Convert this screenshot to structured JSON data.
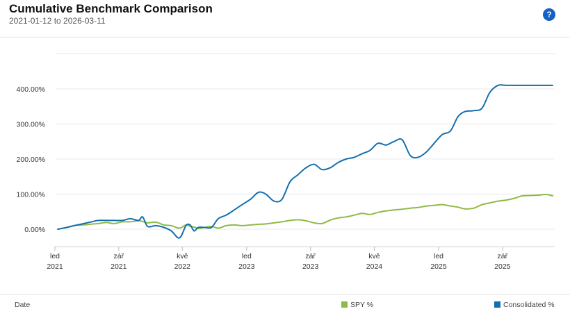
{
  "header": {
    "title": "Cumulative Benchmark Comparison",
    "subtitle": "2021-01-12 to 2026-03-11",
    "help_symbol": "?"
  },
  "footer": {
    "date_label": "Date"
  },
  "colors": {
    "spy": "#8dbb46",
    "consolidated": "#146fae",
    "grid": "#e8e8e8",
    "axis_text": "#333333",
    "help_bg": "#1560c4"
  },
  "chart_data": {
    "type": "line",
    "ylim": [
      -50,
      500
    ],
    "y_ticks": [
      0,
      100,
      200,
      300,
      400
    ],
    "y_tick_labels": [
      "0.00%",
      "100.00%",
      "200.00%",
      "300.00%",
      "400.00%"
    ],
    "xlim": [
      "2021-01-12",
      "2026-03-11"
    ],
    "x_ticks": [
      {
        "date": "2021-01-01",
        "month": "led",
        "year": "2021"
      },
      {
        "date": "2021-09-01",
        "month": "zář",
        "year": "2021"
      },
      {
        "date": "2022-05-01",
        "month": "kvě",
        "year": "2022"
      },
      {
        "date": "2023-01-01",
        "month": "led",
        "year": "2023"
      },
      {
        "date": "2023-09-01",
        "month": "zář",
        "year": "2023"
      },
      {
        "date": "2024-05-01",
        "month": "kvě",
        "year": "2024"
      },
      {
        "date": "2025-01-01",
        "month": "led",
        "year": "2025"
      },
      {
        "date": "2025-09-01",
        "month": "zář",
        "year": "2025"
      }
    ],
    "grid": true,
    "legend_position": "bottom",
    "x": [
      "2021-01-12",
      "2021-02-15",
      "2021-03-15",
      "2021-04-15",
      "2021-05-15",
      "2021-06-15",
      "2021-07-15",
      "2021-08-15",
      "2021-09-15",
      "2021-10-15",
      "2021-11-15",
      "2021-12-01",
      "2021-12-20",
      "2022-01-20",
      "2022-02-20",
      "2022-03-20",
      "2022-04-20",
      "2022-05-15",
      "2022-05-31",
      "2022-06-15",
      "2022-07-01",
      "2022-07-25",
      "2022-08-20",
      "2022-09-15",
      "2022-10-15",
      "2022-11-15",
      "2022-12-15",
      "2023-01-15",
      "2023-02-15",
      "2023-03-15",
      "2023-04-15",
      "2023-05-15",
      "2023-06-15",
      "2023-07-15",
      "2023-08-15",
      "2023-09-15",
      "2023-10-15",
      "2023-11-15",
      "2023-12-15",
      "2024-01-15",
      "2024-02-15",
      "2024-03-15",
      "2024-04-15",
      "2024-05-15",
      "2024-06-15",
      "2024-07-15",
      "2024-08-15",
      "2024-09-15",
      "2024-10-15",
      "2024-11-15",
      "2024-12-15",
      "2025-01-15",
      "2025-02-15",
      "2025-03-15",
      "2025-04-10",
      "2025-05-15",
      "2025-06-15",
      "2025-07-15",
      "2025-08-15",
      "2025-09-15",
      "2025-10-15",
      "2025-11-15",
      "2025-12-15",
      "2026-01-15",
      "2026-02-15",
      "2026-03-11"
    ],
    "series": [
      {
        "name": "SPY %",
        "color": "#8dbb46",
        "values": [
          0,
          5,
          10,
          12,
          14,
          16,
          19,
          16,
          21,
          21,
          24,
          22,
          18,
          20,
          12,
          10,
          3,
          12,
          8,
          6,
          2,
          5,
          8,
          3,
          10,
          12,
          10,
          12,
          14,
          15,
          18,
          21,
          25,
          27,
          24,
          18,
          16,
          26,
          32,
          35,
          40,
          45,
          42,
          48,
          52,
          55,
          57,
          60,
          62,
          66,
          68,
          70,
          66,
          63,
          58,
          60,
          70,
          75,
          80,
          83,
          88,
          95,
          96,
          97,
          99,
          95
        ]
      },
      {
        "name": "Consolidated %",
        "color": "#146fae",
        "values": [
          0,
          5,
          10,
          15,
          20,
          25,
          25,
          25,
          25,
          30,
          25,
          35,
          8,
          10,
          5,
          -5,
          -25,
          10,
          12,
          -5,
          5,
          5,
          5,
          30,
          40,
          55,
          70,
          85,
          105,
          100,
          80,
          85,
          135,
          155,
          175,
          185,
          170,
          175,
          190,
          200,
          205,
          215,
          225,
          245,
          240,
          250,
          255,
          210,
          205,
          220,
          245,
          270,
          280,
          320,
          335,
          338,
          345,
          390,
          410,
          410,
          410,
          410,
          410,
          410,
          410,
          410
        ]
      }
    ]
  }
}
